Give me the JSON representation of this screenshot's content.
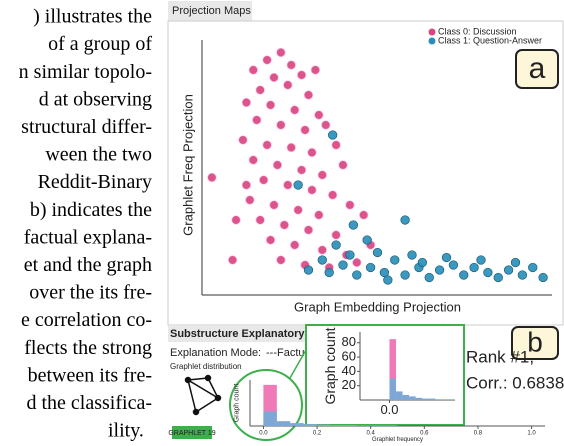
{
  "text_lines": [
    ") illustrates the",
    "of a group of",
    "n similar topolo-",
    "d at observing",
    "structural differ-",
    "ween the two",
    "Reddit-Binary",
    "b) indicates the",
    "factual explana-",
    "et and the graph",
    "over the its fre-",
    "e correlation co-",
    "flects the strong",
    "between its fre-",
    "d the classifica-",
    "ility."
  ],
  "figure": {
    "panel_a_title": "Projection Maps",
    "panel_a_tag": "a",
    "panel_b_title": "Substructure Explanatory Ranking",
    "explanation_mode": "Explanation Mode:",
    "mode_value": "---Factual---",
    "distribution_label": "Graphlet distribution",
    "graphlet_name": "GRAPHLET 19",
    "panel_b_tag": "b",
    "rank": "Rank #1,",
    "corr": "Corr.: 0.6838"
  },
  "chart_data": [
    {
      "type": "scatter",
      "xlabel": "Graph Embedding Projection",
      "ylabel": "Graphlet Freq Projection",
      "xlim": [
        0,
        100
      ],
      "ylim": [
        0,
        100
      ],
      "legend": "top-right",
      "series": [
        {
          "name": "Class 0: Discussion",
          "color": "#d9467f",
          "x": [
            14,
            18,
            22,
            25,
            20,
            16,
            24,
            28,
            30,
            12,
            19,
            26,
            33,
            15,
            22,
            29,
            35,
            11,
            18,
            25,
            31,
            38,
            14,
            21,
            28,
            34,
            40,
            17,
            24,
            31,
            37,
            13,
            20,
            27,
            33,
            42,
            16,
            23,
            30,
            38,
            19,
            26,
            34,
            41,
            22,
            29,
            36,
            44,
            2,
            8,
            46,
            48,
            12,
            32,
            9
          ],
          "values": [
            88,
            92,
            95,
            90,
            85,
            80,
            82,
            86,
            78,
            75,
            74,
            72,
            70,
            68,
            66,
            64,
            66,
            60,
            58,
            57,
            55,
            58,
            52,
            50,
            48,
            46,
            50,
            44,
            42,
            40,
            38,
            36,
            34,
            32,
            30,
            34,
            28,
            26,
            24,
            22,
            20,
            18,
            16,
            14,
            12,
            10,
            9,
            11,
            45,
            12,
            30,
            18,
            42,
            88,
            28
          ]
        },
        {
          "name": "Class 1: Question-Answer",
          "color": "#2a8fb8",
          "x": [
            30,
            36,
            40,
            44,
            48,
            52,
            55,
            58,
            62,
            65,
            68,
            72,
            75,
            78,
            82,
            85,
            88,
            92,
            95,
            98,
            60,
            70,
            80,
            50,
            42,
            34,
            38,
            43,
            37,
            58,
            27,
            47,
            63,
            90,
            53
          ],
          "values": [
            8,
            7,
            10,
            6,
            9,
            7,
            12,
            6,
            9,
            5,
            8,
            10,
            6,
            9,
            7,
            5,
            8,
            6,
            9,
            5,
            14,
            13,
            12,
            15,
            14,
            12,
            18,
            26,
            62,
            28,
            42,
            20,
            11,
            11,
            4
          ]
        }
      ]
    },
    {
      "type": "histogram",
      "ylabel": "Graph count",
      "bins": [
        0,
        0.01,
        0.02,
        0.03,
        0.04,
        0.05,
        0.06,
        0.07,
        0.08,
        0.09,
        0.1
      ],
      "xlim": [
        -0.045,
        0.1
      ],
      "xticks": [
        {
          "value": 0,
          "label": "0.0"
        }
      ],
      "ylim": [
        0,
        95
      ],
      "yticks": [
        20,
        40,
        60,
        80
      ],
      "series": [
        {
          "color": "#f07ab8",
          "values": [
            85,
            0,
            0,
            0,
            0,
            0,
            0,
            0,
            0,
            0
          ]
        },
        {
          "color": "#7fa7d6",
          "values": [
            30,
            12,
            7,
            5,
            3,
            2,
            2,
            1,
            1,
            1
          ]
        }
      ]
    },
    {
      "type": "histogram",
      "ylabel": "Graph count",
      "xlabel": "Graphlet frequency",
      "bins": [
        0,
        0.05,
        0.1,
        0.15,
        0.2,
        0.25,
        0.3,
        0.35,
        0.4,
        0.45,
        0.5
      ],
      "xlim": [
        -0.05,
        1.05
      ],
      "xticks": [
        {
          "value": 0,
          "label": "0.0"
        },
        {
          "value": 0.2,
          "label": "0.2"
        },
        {
          "value": 0.4,
          "label": "0.4"
        },
        {
          "value": 0.6,
          "label": "0.6"
        },
        {
          "value": 0.8,
          "label": "0.8"
        },
        {
          "value": 1,
          "label": "1.0"
        }
      ],
      "ylim": [
        0,
        95
      ],
      "series": [
        {
          "color": "#f07ab8",
          "values": [
            85,
            0,
            0,
            0,
            0,
            0,
            0,
            0,
            0,
            0
          ]
        },
        {
          "color": "#7fa7d6",
          "values": [
            30,
            10,
            6,
            4,
            3,
            2,
            2,
            1,
            1,
            1
          ]
        }
      ]
    }
  ]
}
